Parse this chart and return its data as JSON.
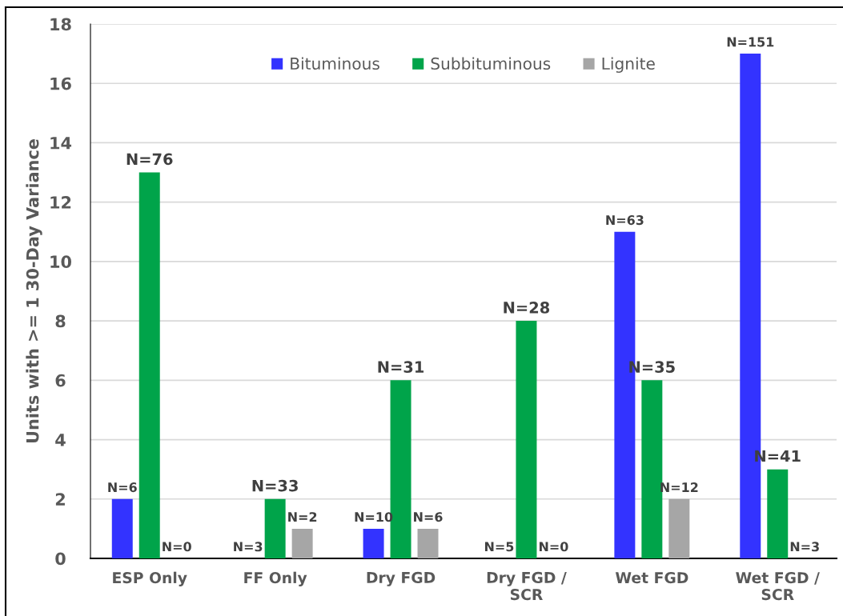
{
  "chart_data": {
    "type": "bar",
    "ylabel": "Units with >= 1 30-Day Variance",
    "categories": [
      "ESP Only",
      "FF Only",
      "Dry FGD",
      "Dry FGD /\nSCR",
      "Wet FGD",
      "Wet FGD /\nSCR"
    ],
    "series": [
      {
        "name": "Bituminous",
        "color": "#3333ff",
        "values": [
          2,
          0,
          1,
          0,
          11,
          17
        ]
      },
      {
        "name": "Subbituminous",
        "color": "#00a44a",
        "values": [
          13,
          2,
          6,
          8,
          6,
          3
        ]
      },
      {
        "name": "Lignite",
        "color": "#a6a6a6",
        "values": [
          0,
          1,
          1,
          0,
          2,
          0
        ]
      }
    ],
    "annotations": [
      "N=6",
      "N=3",
      "N=10",
      "N=5",
      "N=63",
      "N=151",
      "N=76",
      "N=33",
      "N=31",
      "N=28",
      "N=35",
      "N=41",
      "N=0",
      "N=2",
      "N=6",
      "N=0",
      "N=12",
      "N=3"
    ],
    "ylim": [
      0,
      18
    ],
    "yticks": [
      0,
      2,
      4,
      6,
      8,
      10,
      12,
      14,
      16,
      18
    ],
    "grid": "y",
    "legend": "top"
  }
}
